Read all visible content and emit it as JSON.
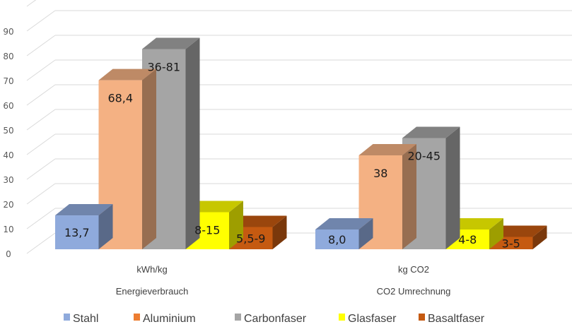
{
  "chart_data": {
    "type": "bar",
    "style": "3d-clustered-column",
    "title": "",
    "xlabel": "",
    "ylabel": "",
    "ylim": [
      0,
      90
    ],
    "yticks": [
      0,
      10,
      20,
      30,
      40,
      50,
      60,
      70,
      80,
      90
    ],
    "grid": true,
    "legend_position": "bottom",
    "categories": [
      {
        "unit": "kWh/kg",
        "name": "Energieverbrauch"
      },
      {
        "unit": "kg CO2",
        "name": "CO2 Umrechnung"
      }
    ],
    "series": [
      {
        "name": "Stahl",
        "color": "#8FAADC",
        "values": [
          13.7,
          8.0
        ],
        "labels": [
          "13,7",
          "8,0"
        ]
      },
      {
        "name": "Aluminium",
        "color": "#F4B183",
        "values": [
          68.4,
          38
        ],
        "labels": [
          "68,4",
          "38"
        ]
      },
      {
        "name": "Carbonfaser",
        "color": "#A5A5A5",
        "values": [
          81,
          45
        ],
        "labels": [
          "36-81",
          "20-45"
        ]
      },
      {
        "name": "Glasfaser",
        "color": "#FFFF00",
        "values": [
          15,
          8
        ],
        "labels": [
          "8-15",
          "4-8"
        ]
      },
      {
        "name": "Basaltfaser",
        "color": "#C55A11",
        "values": [
          9,
          5
        ],
        "labels": [
          "5,5-9",
          "3-5"
        ]
      }
    ],
    "legend_colors": [
      "#8FAADC",
      "#ED7D31",
      "#A5A5A5",
      "#FFFF00",
      "#C55A11"
    ]
  }
}
